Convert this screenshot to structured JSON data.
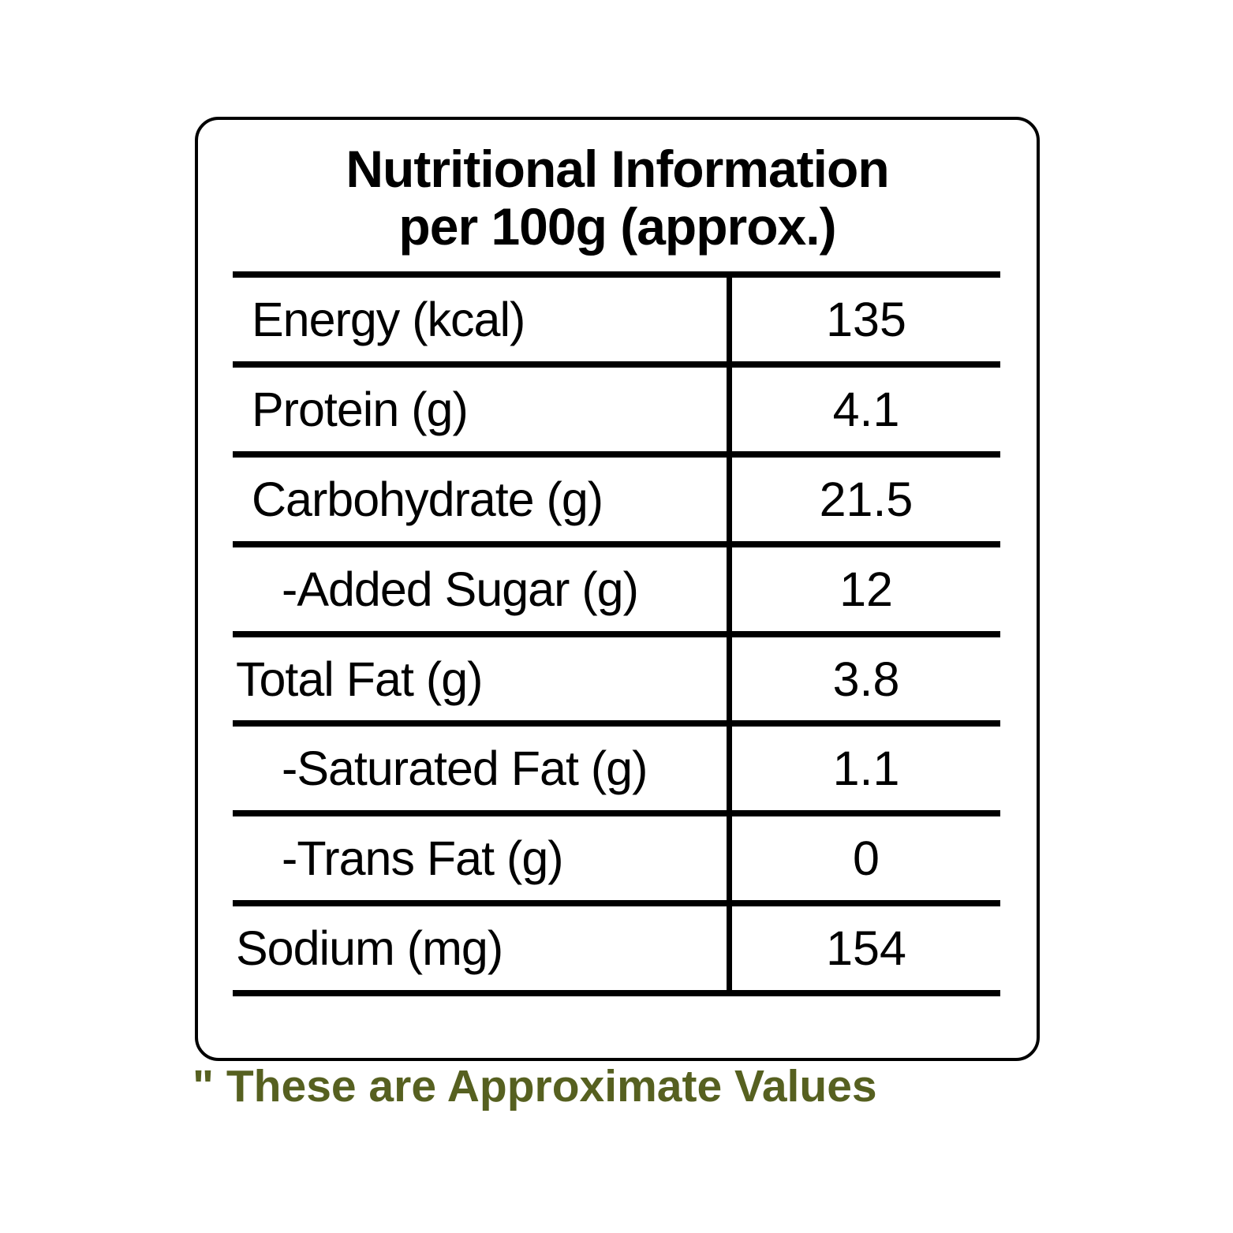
{
  "title": {
    "line1": "Nutritional Information",
    "line2": "per 100g (approx.)"
  },
  "table": {
    "rows": [
      {
        "label": "Energy (kcal)",
        "value": "135"
      },
      {
        "label": "Protein (g)",
        "value": "4.1"
      },
      {
        "label": "Carbohydrate (g)",
        "value": "21.5"
      },
      {
        "label": "-Added Sugar (g)",
        "value": "12"
      },
      {
        "label": "Total Fat (g)",
        "value": "3.8"
      },
      {
        "label": "-Saturated Fat (g)",
        "value": "1.1"
      },
      {
        "label": "-Trans Fat (g)",
        "value": "0"
      },
      {
        "label": "Sodium (mg)",
        "value": "154"
      }
    ]
  },
  "footer": {
    "note": "\" These are Approximate Values"
  },
  "colors": {
    "background": "#ffffff",
    "border": "#000000",
    "text": "#000000",
    "note": "#566020"
  }
}
